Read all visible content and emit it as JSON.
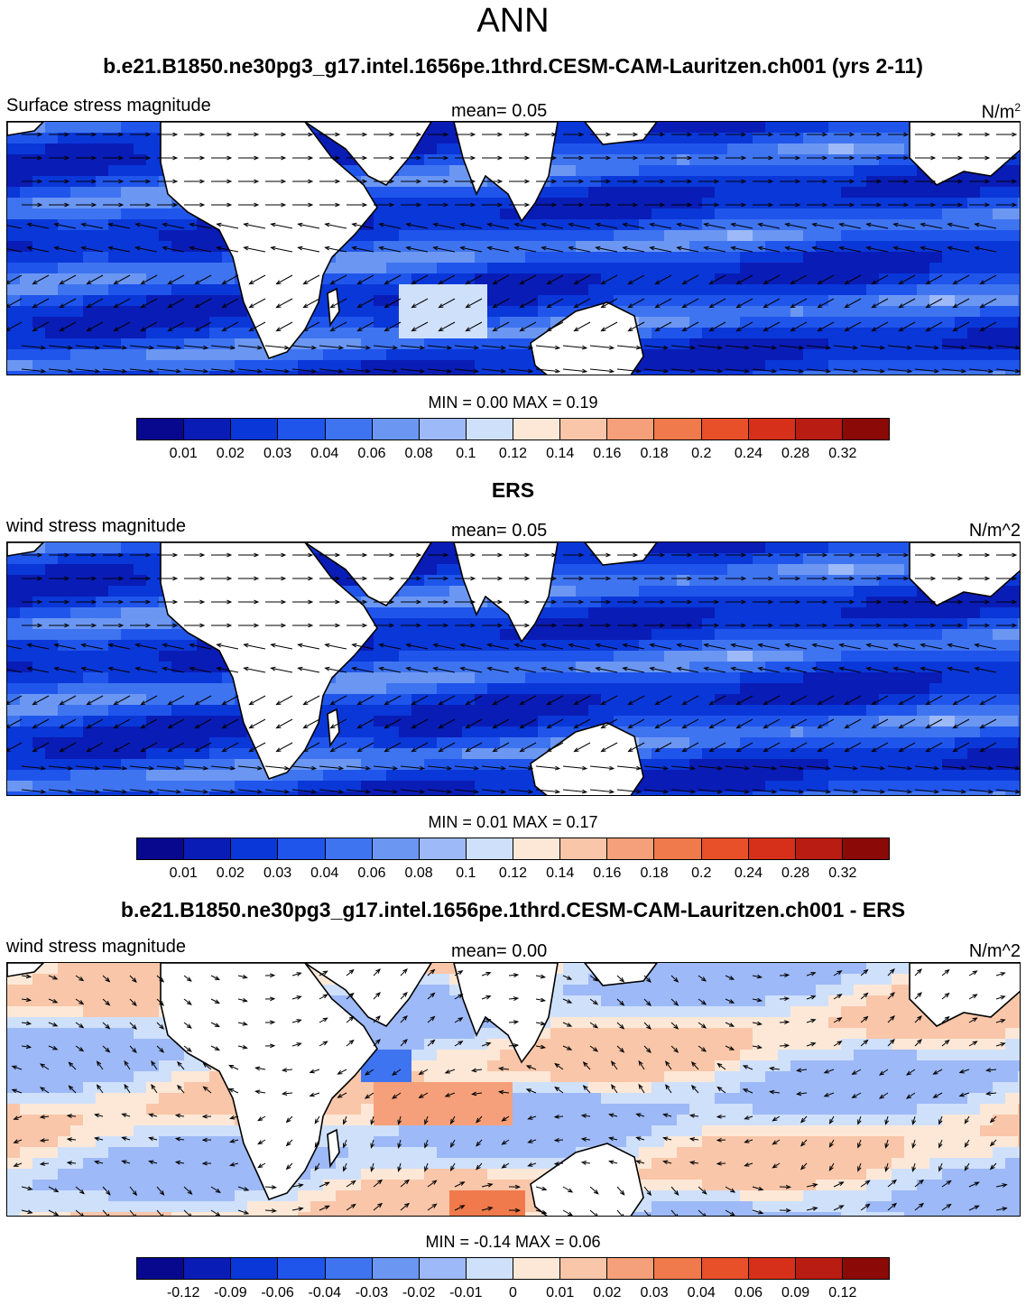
{
  "main_title": "ANN",
  "panels": [
    {
      "title": "b.e21.B1850.ne30pg3_g17.intel.1656pe.1thrd.CESM-CAM-Lauritzen.ch001 (yrs 2-11)",
      "left_label": "Surface stress magnitude",
      "mean_label": "mean=   0.05",
      "units": "N/m",
      "units_sup": "2",
      "minmax": "MIN =   0.00 MAX =   0.19",
      "colorbar_ticks": [
        "0.01",
        "0.02",
        "0.03",
        "0.04",
        "0.06",
        "0.08",
        "0.1",
        "0.12",
        "0.14",
        "0.16",
        "0.18",
        "0.2",
        "0.24",
        "0.28",
        "0.32"
      ]
    },
    {
      "title": "ERS",
      "left_label": "wind stress magnitude",
      "mean_label": "mean=   0.05",
      "units": "N/m^2",
      "units_sup": "",
      "minmax": "MIN =   0.01 MAX =   0.17",
      "colorbar_ticks": [
        "0.01",
        "0.02",
        "0.03",
        "0.04",
        "0.06",
        "0.08",
        "0.1",
        "0.12",
        "0.14",
        "0.16",
        "0.18",
        "0.2",
        "0.24",
        "0.28",
        "0.32"
      ]
    },
    {
      "title": "b.e21.B1850.ne30pg3_g17.intel.1656pe.1thrd.CESM-CAM-Lauritzen.ch001 - ERS",
      "left_label": "wind stress magnitude",
      "mean_label": "mean=   0.00",
      "units": "N/m^2",
      "units_sup": "",
      "minmax": "MIN =  -0.14 MAX =   0.06",
      "colorbar_ticks": [
        "-0.12",
        "-0.09",
        "-0.06",
        "-0.04",
        "-0.03",
        "-0.02",
        "-0.01",
        "0",
        "0.01",
        "0.02",
        "0.03",
        "0.04",
        "0.06",
        "0.09",
        "0.12"
      ]
    }
  ],
  "colorbar_colors": [
    "#08088f",
    "#0a1cb6",
    "#0a37d8",
    "#1f55eb",
    "#3f74f0",
    "#6b97f3",
    "#9db9f7",
    "#cfe0fb",
    "#fde8d7",
    "#f9c6a9",
    "#f5a07a",
    "#f07a4b",
    "#e8502a",
    "#d6301a",
    "#b81c12",
    "#8b0906"
  ],
  "chart_data": [
    {
      "type": "heatmap",
      "title": "b.e21.B1850.ne30pg3_g17.intel.1656pe.1thrd.CESM-CAM-Lauritzen.ch001 (yrs 2-11)",
      "variable": "Surface stress magnitude",
      "units": "N/m2",
      "mean": 0.05,
      "min": 0.0,
      "max": 0.19,
      "levels": [
        0.01,
        0.02,
        0.03,
        0.04,
        0.06,
        0.08,
        0.1,
        0.12,
        0.14,
        0.16,
        0.18,
        0.2,
        0.24,
        0.28,
        0.32
      ],
      "overlay": "wind stress vectors"
    },
    {
      "type": "heatmap",
      "title": "ERS",
      "variable": "wind stress magnitude",
      "units": "N/m^2",
      "mean": 0.05,
      "min": 0.01,
      "max": 0.17,
      "levels": [
        0.01,
        0.02,
        0.03,
        0.04,
        0.06,
        0.08,
        0.1,
        0.12,
        0.14,
        0.16,
        0.18,
        0.2,
        0.24,
        0.28,
        0.32
      ],
      "overlay": "wind stress vectors"
    },
    {
      "type": "heatmap",
      "title": "b.e21.B1850.ne30pg3_g17.intel.1656pe.1thrd.CESM-CAM-Lauritzen.ch001 - ERS",
      "variable": "wind stress magnitude",
      "units": "N/m^2",
      "mean": 0.0,
      "min": -0.14,
      "max": 0.06,
      "levels": [
        -0.12,
        -0.09,
        -0.06,
        -0.04,
        -0.03,
        -0.02,
        -0.01,
        0,
        0.01,
        0.02,
        0.03,
        0.04,
        0.06,
        0.09,
        0.12
      ],
      "overlay": "wind stress difference vectors"
    }
  ]
}
